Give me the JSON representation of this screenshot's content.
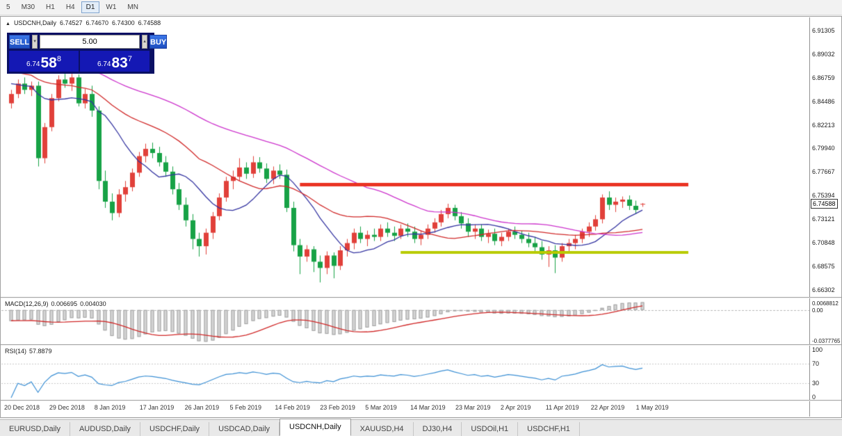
{
  "toolbar": {
    "timeframes": [
      "5",
      "M30",
      "H1",
      "H4",
      "D1",
      "W1",
      "MN"
    ],
    "active": "D1"
  },
  "icons": {
    "collapse": "▲",
    "spin_up": "▲",
    "spin_down": "▼"
  },
  "chart_header": {
    "symbol": "USDCNH,Daily",
    "open": "6.74527",
    "high": "6.74670",
    "low": "6.74300",
    "close": "6.74588"
  },
  "trade_panel": {
    "sell_label": "SELL",
    "buy_label": "BUY",
    "volume": "5.00",
    "bid": {
      "prefix": "6.74",
      "big": "58",
      "sup": "8"
    },
    "ask": {
      "prefix": "6.74",
      "big": "83",
      "sup": "7"
    }
  },
  "indicators": {
    "macd": {
      "name": "MACD(12,26,9)",
      "value_main": "0.006695",
      "value_signal": "0.004030",
      "axis_labels": [
        "0.0068812",
        "0.00",
        "-0.0377765"
      ]
    },
    "rsi": {
      "name": "RSI(14)",
      "value": "57.8879",
      "axis_labels": [
        "100",
        "70",
        "30",
        "0"
      ],
      "levels": [
        70,
        30
      ]
    }
  },
  "price_axis": {
    "labels": [
      "6.91305",
      "6.89032",
      "6.86759",
      "6.84486",
      "6.82213",
      "6.79940",
      "6.77667",
      "6.75394",
      "6.73121",
      "6.70848",
      "6.68575",
      "6.66302"
    ],
    "current": "6.74588"
  },
  "date_axis": {
    "labels": [
      "20 Dec 2018",
      "29 Dec 2018",
      "8 Jan 2019",
      "17 Jan 2019",
      "26 Jan 2019",
      "5 Feb 2019",
      "14 Feb 2019",
      "23 Feb 2019",
      "5 Mar 2019",
      "14 Mar 2019",
      "23 Mar 2019",
      "2 Apr 2019",
      "11 Apr 2019",
      "22 Apr 2019",
      "1 May 2019"
    ]
  },
  "tabs": {
    "items": [
      "EURUSD,Daily",
      "AUDUSD,Daily",
      "USDCHF,Daily",
      "USDCAD,Daily",
      "USDCNH,Daily",
      "XAUUSD,H4",
      "DJ30,H4",
      "USDOil,H1",
      "USDCHF,H1"
    ],
    "active_index": 4
  },
  "chart_data": {
    "type": "candlestick",
    "title": "USDCNH,Daily",
    "up_color": "#e1403a",
    "down_color": "#17a246",
    "y_range": [
      6.656,
      6.926
    ],
    "overlays": [
      {
        "name": "ma-fast",
        "period": 10,
        "color": "#3333a0"
      },
      {
        "name": "ma-mid",
        "period": 25,
        "color": "#d02828"
      },
      {
        "name": "ma-slow",
        "period": 50,
        "color": "#cc33cc"
      }
    ],
    "levels": [
      {
        "name": "resistance-line",
        "price": 6.7645,
        "color": "#ea3323",
        "width": 5,
        "from_index": 43
      },
      {
        "name": "support-line",
        "price": 6.699,
        "color": "#b8cb00",
        "width": 4,
        "from_index": 58
      }
    ],
    "macd_params": {
      "fast": 12,
      "slow": 26,
      "signal": 9,
      "hist_fill": "#d6d6d6",
      "hist_stroke": "#a0a0a0",
      "signal_color": "#d02828"
    },
    "rsi_params": {
      "period": 14,
      "color": "#3b8fd4"
    },
    "ohlc": [
      [
        6.843,
        6.856,
        6.838,
        6.852
      ],
      [
        6.852,
        6.866,
        6.848,
        6.862
      ],
      [
        6.862,
        6.868,
        6.852,
        6.856
      ],
      [
        6.856,
        6.864,
        6.85,
        6.86
      ],
      [
        6.86,
        6.864,
        6.782,
        6.79
      ],
      [
        6.79,
        6.824,
        6.785,
        6.82
      ],
      [
        6.82,
        6.852,
        6.816,
        6.848
      ],
      [
        6.848,
        6.87,
        6.845,
        6.866
      ],
      [
        6.866,
        6.873,
        6.858,
        6.862
      ],
      [
        6.862,
        6.872,
        6.855,
        6.868
      ],
      [
        6.868,
        6.871,
        6.84,
        6.843
      ],
      [
        6.843,
        6.857,
        6.838,
        6.852
      ],
      [
        6.852,
        6.86,
        6.83,
        6.836
      ],
      [
        6.836,
        6.84,
        6.76,
        6.768
      ],
      [
        6.768,
        6.778,
        6.742,
        6.748
      ],
      [
        6.748,
        6.756,
        6.73,
        6.737
      ],
      [
        6.737,
        6.76,
        6.733,
        6.755
      ],
      [
        6.755,
        6.768,
        6.748,
        6.762
      ],
      [
        6.762,
        6.78,
        6.758,
        6.776
      ],
      [
        6.776,
        6.796,
        6.772,
        6.792
      ],
      [
        6.792,
        6.804,
        6.786,
        6.799
      ],
      [
        6.799,
        6.805,
        6.79,
        6.795
      ],
      [
        6.795,
        6.801,
        6.782,
        6.786
      ],
      [
        6.786,
        6.792,
        6.772,
        6.777
      ],
      [
        6.777,
        6.782,
        6.755,
        6.76
      ],
      [
        6.76,
        6.766,
        6.74,
        6.745
      ],
      [
        6.745,
        6.752,
        6.724,
        6.73
      ],
      [
        6.73,
        6.736,
        6.702,
        6.712
      ],
      [
        6.712,
        6.718,
        6.695,
        6.705
      ],
      [
        6.705,
        6.722,
        6.697,
        6.718
      ],
      [
        6.718,
        6.738,
        6.712,
        6.734
      ],
      [
        6.734,
        6.756,
        6.73,
        6.752
      ],
      [
        6.752,
        6.772,
        6.748,
        6.768
      ],
      [
        6.768,
        6.778,
        6.76,
        6.772
      ],
      [
        6.772,
        6.79,
        6.768,
        6.781
      ],
      [
        6.781,
        6.786,
        6.77,
        6.775
      ],
      [
        6.775,
        6.792,
        6.771,
        6.786
      ],
      [
        6.786,
        6.791,
        6.776,
        6.78
      ],
      [
        6.78,
        6.785,
        6.766,
        6.77
      ],
      [
        6.77,
        6.782,
        6.765,
        6.778
      ],
      [
        6.778,
        6.784,
        6.77,
        6.774
      ],
      [
        6.774,
        6.779,
        6.738,
        6.742
      ],
      [
        6.742,
        6.748,
        6.7,
        6.706
      ],
      [
        6.706,
        6.712,
        6.678,
        6.695
      ],
      [
        6.695,
        6.706,
        6.69,
        6.702
      ],
      [
        6.702,
        6.705,
        6.68,
        6.69
      ],
      [
        6.69,
        6.696,
        6.67,
        6.684
      ],
      [
        6.684,
        6.7,
        6.678,
        6.696
      ],
      [
        6.696,
        6.699,
        6.674,
        6.686
      ],
      [
        6.686,
        6.705,
        6.682,
        6.701
      ],
      [
        6.701,
        6.712,
        6.695,
        6.708
      ],
      [
        6.708,
        6.722,
        6.702,
        6.718
      ],
      [
        6.718,
        6.724,
        6.708,
        6.712
      ],
      [
        6.712,
        6.72,
        6.705,
        6.716
      ],
      [
        6.716,
        6.722,
        6.71,
        6.714
      ],
      [
        6.714,
        6.726,
        6.71,
        6.722
      ],
      [
        6.722,
        6.728,
        6.714,
        6.718
      ],
      [
        6.718,
        6.724,
        6.71,
        6.715
      ],
      [
        6.715,
        6.726,
        6.712,
        6.722
      ],
      [
        6.722,
        6.727,
        6.714,
        6.719
      ],
      [
        6.719,
        6.724,
        6.708,
        6.712
      ],
      [
        6.712,
        6.72,
        6.706,
        6.716
      ],
      [
        6.716,
        6.726,
        6.712,
        6.722
      ],
      [
        6.722,
        6.732,
        6.718,
        6.728
      ],
      [
        6.728,
        6.74,
        6.724,
        6.736
      ],
      [
        6.736,
        6.746,
        6.732,
        6.742
      ],
      [
        6.742,
        6.745,
        6.73,
        6.734
      ],
      [
        6.734,
        6.738,
        6.722,
        6.727
      ],
      [
        6.727,
        6.732,
        6.714,
        6.719
      ],
      [
        6.719,
        6.726,
        6.712,
        6.722
      ],
      [
        6.722,
        6.726,
        6.71,
        6.714
      ],
      [
        6.714,
        6.721,
        6.708,
        6.717
      ],
      [
        6.717,
        6.722,
        6.706,
        6.71
      ],
      [
        6.71,
        6.718,
        6.705,
        6.714
      ],
      [
        6.714,
        6.722,
        6.71,
        6.719
      ],
      [
        6.719,
        6.724,
        6.712,
        6.716
      ],
      [
        6.716,
        6.72,
        6.708,
        6.712
      ],
      [
        6.712,
        6.718,
        6.704,
        6.708
      ],
      [
        6.708,
        6.714,
        6.7,
        6.704
      ],
      [
        6.704,
        6.71,
        6.692,
        6.697
      ],
      [
        6.697,
        6.705,
        6.685,
        6.701
      ],
      [
        6.701,
        6.706,
        6.679,
        6.694
      ],
      [
        6.694,
        6.708,
        6.69,
        6.705
      ],
      [
        6.705,
        6.712,
        6.698,
        6.708
      ],
      [
        6.708,
        6.716,
        6.702,
        6.712
      ],
      [
        6.712,
        6.722,
        6.708,
        6.719
      ],
      [
        6.719,
        6.728,
        6.714,
        6.724
      ],
      [
        6.724,
        6.735,
        6.72,
        6.731
      ],
      [
        6.731,
        6.755,
        6.727,
        6.752
      ],
      [
        6.752,
        6.758,
        6.74,
        6.745
      ],
      [
        6.745,
        6.752,
        6.738,
        6.748
      ],
      [
        6.748,
        6.753,
        6.742,
        6.75
      ],
      [
        6.75,
        6.754,
        6.74,
        6.744
      ],
      [
        6.744,
        6.749,
        6.736,
        6.74
      ],
      [
        6.74527,
        6.7467,
        6.743,
        6.74588
      ]
    ]
  }
}
